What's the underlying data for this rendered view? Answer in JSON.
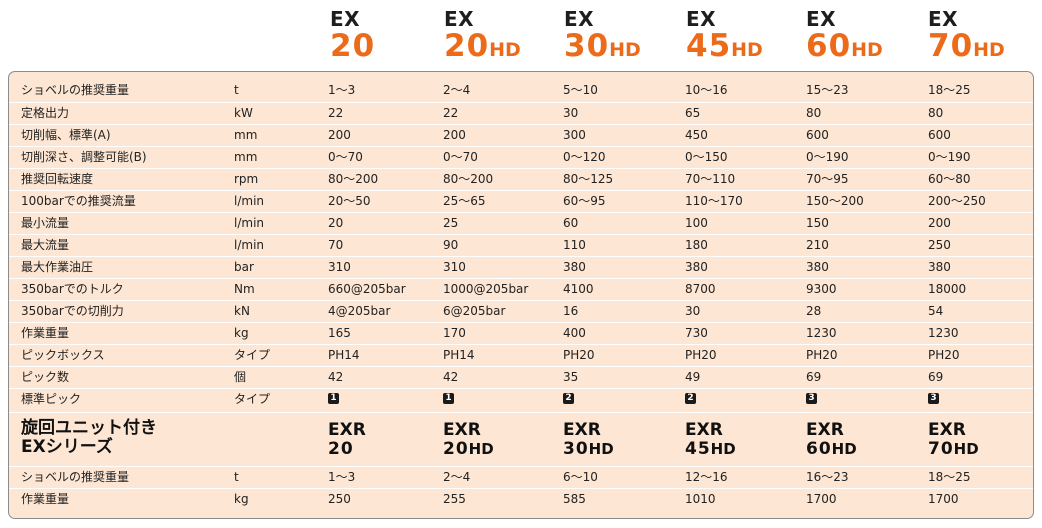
{
  "header_models": [
    {
      "prefix": "EX",
      "number": "20",
      "suffix": ""
    },
    {
      "prefix": "EX",
      "number": "20",
      "suffix": "HD"
    },
    {
      "prefix": "EX",
      "number": "30",
      "suffix": "HD"
    },
    {
      "prefix": "EX",
      "number": "45",
      "suffix": "HD"
    },
    {
      "prefix": "EX",
      "number": "60",
      "suffix": "HD"
    },
    {
      "prefix": "EX",
      "number": "70",
      "suffix": "HD"
    }
  ],
  "rows": [
    {
      "label": "ショベルの推奨重量",
      "unit": "t",
      "values": [
        "1〜3",
        "2〜4",
        "5〜10",
        "10〜16",
        "15〜23",
        "18〜25"
      ]
    },
    {
      "label": "定格出力",
      "unit": "kW",
      "values": [
        "22",
        "22",
        "30",
        "65",
        "80",
        "80"
      ]
    },
    {
      "label": "切削幅、標準(A)",
      "unit": "mm",
      "values": [
        "200",
        "200",
        "300",
        "450",
        "600",
        "600"
      ]
    },
    {
      "label": "切削深さ、調整可能(B)",
      "unit": "mm",
      "values": [
        "0〜70",
        "0〜70",
        "0〜120",
        "0〜150",
        "0〜190",
        "0〜190"
      ]
    },
    {
      "label": "推奨回転速度",
      "unit": "rpm",
      "values": [
        "80〜200",
        "80〜200",
        "80〜125",
        "70〜110",
        "70〜95",
        "60〜80"
      ]
    },
    {
      "label": "100barでの推奨流量",
      "unit": "l/min",
      "values": [
        "20〜50",
        "25〜65",
        "60〜95",
        "110〜170",
        "150〜200",
        "200〜250"
      ]
    },
    {
      "label": "最小流量",
      "unit": "l/min",
      "values": [
        "20",
        "25",
        "60",
        "100",
        "150",
        "200"
      ]
    },
    {
      "label": "最大流量",
      "unit": "l/min",
      "values": [
        "70",
        "90",
        "110",
        "180",
        "210",
        "250"
      ]
    },
    {
      "label": "最大作業油圧",
      "unit": "bar",
      "values": [
        "310",
        "310",
        "380",
        "380",
        "380",
        "380"
      ]
    },
    {
      "label": "350barでのトルク",
      "unit": "Nm",
      "values": [
        "660@205bar",
        "1000@205bar",
        "4100",
        "8700",
        "9300",
        "18000"
      ]
    },
    {
      "label": "350barでの切削力",
      "unit": "kN",
      "values": [
        "4@205bar",
        "6@205bar",
        "16",
        "30",
        "28",
        "54"
      ]
    },
    {
      "label": "作業重量",
      "unit": "kg",
      "values": [
        "165",
        "170",
        "400",
        "730",
        "1230",
        "1230"
      ]
    },
    {
      "label": "ピックボックス",
      "unit": "タイプ",
      "values": [
        "PH14",
        "PH14",
        "PH20",
        "PH20",
        "PH20",
        "PH20"
      ]
    },
    {
      "label": "ピック数",
      "unit": "個",
      "values": [
        "42",
        "42",
        "35",
        "49",
        "69",
        "69"
      ]
    }
  ],
  "pick_row": {
    "label": "標準ピック",
    "unit": "タイプ",
    "values": [
      "1",
      "1",
      "2",
      "2",
      "3",
      "3"
    ]
  },
  "exr_section": {
    "title_line1": "旋回ユニット付き",
    "title_line2": "EXシリーズ",
    "models": [
      {
        "prefix": "EXR",
        "number": "20",
        "suffix": ""
      },
      {
        "prefix": "EXR",
        "number": "20",
        "suffix": "HD"
      },
      {
        "prefix": "EXR",
        "number": "30",
        "suffix": "HD"
      },
      {
        "prefix": "EXR",
        "number": "45",
        "suffix": "HD"
      },
      {
        "prefix": "EXR",
        "number": "60",
        "suffix": "HD"
      },
      {
        "prefix": "EXR",
        "number": "70",
        "suffix": "HD"
      }
    ],
    "rows": [
      {
        "label": "ショベルの推奨重量",
        "unit": "t",
        "values": [
          "1〜3",
          "2〜4",
          "6〜10",
          "12〜16",
          "16〜23",
          "18〜25"
        ]
      },
      {
        "label": "作業重量",
        "unit": "kg",
        "values": [
          "250",
          "255",
          "585",
          "1010",
          "1700",
          "1700"
        ]
      }
    ]
  },
  "colors": {
    "accent": "#ec6b1a",
    "panel_bg": "#fde6d3",
    "border": "#8b8b8b"
  }
}
